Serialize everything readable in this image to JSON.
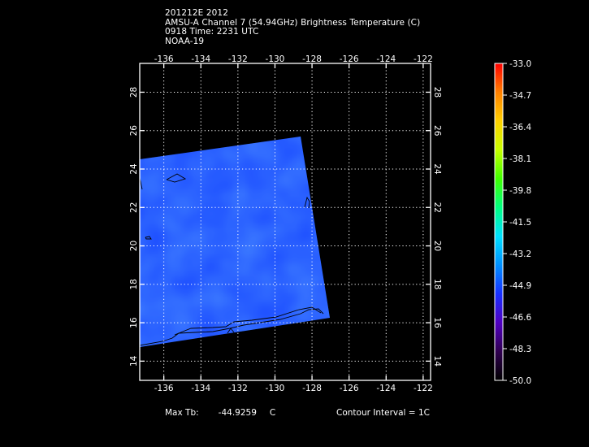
{
  "header": {
    "line1": "201212E 2012",
    "line2": "AMSU-A Channel 7 (54.94GHz) Brightness Temperature (C)",
    "line3": "0918 Time: 2231 UTC",
    "line4": "NOAA-19"
  },
  "map": {
    "lon_ticks": [
      "-136",
      "-134",
      "-132",
      "-130",
      "-128",
      "-126",
      "-124",
      "-122"
    ],
    "lat_ticks": [
      "14",
      "16",
      "18",
      "20",
      "22",
      "24",
      "26",
      "28"
    ],
    "lon_values": [
      -136,
      -134,
      -132,
      -130,
      -128,
      -126,
      -124,
      -122
    ],
    "lat_values": [
      14,
      16,
      18,
      20,
      22,
      24,
      26,
      28
    ],
    "lon_range": [
      -137.3,
      -121.6
    ],
    "lat_range": [
      13,
      29.5
    ],
    "swath_color": "#1c4dff",
    "grid": "dotted"
  },
  "colorbar": {
    "labels": [
      "-33.0",
      "-34.7",
      "-36.4",
      "-38.1",
      "-39.8",
      "-41.5",
      "-43.2",
      "-44.9",
      "-46.6",
      "-48.3",
      "-50.0"
    ],
    "colors": [
      "#ff0000",
      "#ff8000",
      "#ffd000",
      "#c8ff00",
      "#40ff00",
      "#00ff80",
      "#00e0ff",
      "#0090ff",
      "#1830ff",
      "#5000c0",
      "#300050",
      "#000000"
    ]
  },
  "footer": {
    "max_label": "Max Tb:",
    "max_value": "-44.9259",
    "max_unit": "C",
    "contour": "Contour Interval = 1C"
  }
}
